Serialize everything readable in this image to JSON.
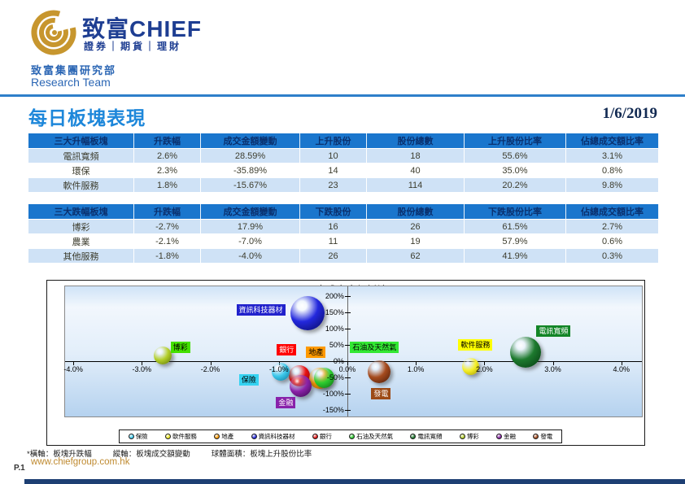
{
  "header": {
    "logo_cn": "致富",
    "logo_en": "CHIEF",
    "tagline": "證券｜期貨｜理財",
    "dept_cn": "致富集團研究部",
    "dept_en": "Research Team",
    "logo_gold": "#c7962e",
    "logo_navy": "#1e3e92"
  },
  "title": {
    "text": "每日板塊表現",
    "date": "1/6/2019"
  },
  "tables": {
    "gainers": {
      "headers": [
        "三大升幅板塊",
        "升跌幅",
        "成交金額變動",
        "上升股份",
        "股份總數",
        "上升股份比率",
        "佔總成交額比率"
      ],
      "rows": [
        [
          "電訊寬頻",
          "2.6%",
          "28.59%",
          "10",
          "18",
          "55.6%",
          "3.1%"
        ],
        [
          "環保",
          "2.3%",
          "-35.89%",
          "14",
          "40",
          "35.0%",
          "0.8%"
        ],
        [
          "軟件服務",
          "1.8%",
          "-15.67%",
          "23",
          "114",
          "20.2%",
          "9.8%"
        ]
      ]
    },
    "decliners": {
      "headers": [
        "三大跌幅板塊",
        "升跌幅",
        "成交金額變動",
        "下跌股份",
        "股份總數",
        "下跌股份比率",
        "佔總成交額比率"
      ],
      "rows": [
        [
          "博彩",
          "-2.7%",
          "17.9%",
          "16",
          "26",
          "61.5%",
          "2.7%"
        ],
        [
          "農業",
          "-2.1%",
          "-7.0%",
          "11",
          "19",
          "57.9%",
          "0.6%"
        ],
        [
          "其他服務",
          "-1.8%",
          "-4.0%",
          "26",
          "62",
          "41.9%",
          "0.3%"
        ]
      ]
    }
  },
  "chart_data": {
    "type": "scatter",
    "title_prefix": "10",
    "title_rest": "大成交金額板塊",
    "xlim": [
      -4,
      4
    ],
    "ylim": [
      -150,
      200
    ],
    "x_ticks": [
      "-4.0%",
      "-3.0%",
      "-2.0%",
      "-1.0%",
      "0.0%",
      "1.0%",
      "2.0%",
      "3.0%",
      "4.0%"
    ],
    "y_ticks": [
      "200%",
      "150%",
      "100%",
      "50%",
      "0%",
      "-50%",
      "-100%",
      "-150%"
    ],
    "series": [
      {
        "key": "banks",
        "name": "銀行",
        "x": -0.7,
        "y": -45,
        "r": 13,
        "color": "#e81111",
        "dark": "#7a0505",
        "label": {
          "x": -1.03,
          "y": 52.5,
          "bg": "#ff0000",
          "fg": "#ffffff"
        }
      },
      {
        "key": "property",
        "name": "地產",
        "x": -0.4,
        "y": -53,
        "r": 13,
        "color": "#ff9d00",
        "dark": "#a35b00",
        "label": {
          "x": -0.6,
          "y": 45,
          "bg": "#ff9900",
          "fg": "#000000"
        }
      },
      {
        "key": "financials",
        "name": "金融",
        "x": -0.68,
        "y": -75,
        "r": 13.5,
        "color": "#8b22a8",
        "dark": "#3d0a52",
        "label": {
          "x": -1.04,
          "y": -110,
          "bg": "#8822aa",
          "fg": "#ffffff"
        }
      },
      {
        "key": "oil-gas",
        "name": "石油及天然氣",
        "x": -0.34,
        "y": -50,
        "r": 12.5,
        "color": "#2ecc30",
        "dark": "#0c6e12",
        "label": {
          "x": 0.04,
          "y": 60,
          "bg": "#33e833",
          "fg": "#000000"
        }
      },
      {
        "key": "insurance",
        "name": "保險",
        "x": -0.97,
        "y": -33,
        "r": 11,
        "color": "#3ec9ec",
        "dark": "#0e7ca0",
        "label": {
          "x": -1.58,
          "y": -40,
          "bg": "#35d3f2",
          "fg": "#000000"
        }
      },
      {
        "key": "power",
        "name": "發電",
        "x": 0.46,
        "y": -33,
        "r": 14,
        "color": "#a64b1e",
        "dark": "#4f1d08",
        "label": {
          "x": 0.35,
          "y": -82.5,
          "bg": "#9c4a16",
          "fg": "#ffffff"
        }
      },
      {
        "key": "software",
        "name": "軟件服務",
        "x": 1.8,
        "y": -15.67,
        "r": 10.5,
        "color": "#f5ef2a",
        "dark": "#a9a000",
        "label": {
          "x": 1.62,
          "y": 67.5,
          "bg": "#ffff00",
          "fg": "#000000"
        }
      },
      {
        "key": "telecom",
        "name": "電訊寬頻",
        "x": 2.6,
        "y": 28.59,
        "r": 19,
        "color": "#1d7a2e",
        "dark": "#063d12",
        "label": {
          "x": 2.76,
          "y": 110,
          "bg": "#128526",
          "fg": "#ffffff"
        }
      },
      {
        "key": "it-equipment",
        "name": "資訊科技器材",
        "x": -0.58,
        "y": 148,
        "r": 21,
        "color": "#2328dd",
        "dark": "#0a0c66",
        "label": {
          "x": -1.62,
          "y": 175,
          "bg": "#2222cc",
          "fg": "#ffffff"
        }
      },
      {
        "key": "gaming",
        "name": "博彩",
        "x": -2.7,
        "y": 17.9,
        "r": 11,
        "color": "#b4cf2a",
        "dark": "#5f7a08",
        "label": {
          "x": -2.58,
          "y": 60,
          "bg": "#44e000",
          "fg": "#000000"
        }
      }
    ],
    "legend": [
      {
        "name": "保險",
        "color": "#3ec9ec"
      },
      {
        "name": "軟件服務",
        "color": "#f0ea22"
      },
      {
        "name": "地產",
        "color": "#ff9900"
      },
      {
        "name": "資訊科技器材",
        "color": "#2328dd"
      },
      {
        "name": "銀行",
        "color": "#e81111"
      },
      {
        "name": "石油及天然氣",
        "color": "#2ecc30"
      },
      {
        "name": "電訊寬頻",
        "color": "#1d7a2e"
      },
      {
        "name": "博彩",
        "color": "#b4cf2a"
      },
      {
        "name": "金融",
        "color": "#8b22a8"
      },
      {
        "name": "發電",
        "color": "#a64b1e"
      }
    ]
  },
  "footnote": {
    "axis_x": "*橫軸：板塊升跌幅",
    "axis_y": "縱軸：板塊成交額變動",
    "bubble": "球體面積：板塊上升股份比率"
  },
  "website": "www.chiefgroup.com.hk",
  "page_num": "P.1"
}
